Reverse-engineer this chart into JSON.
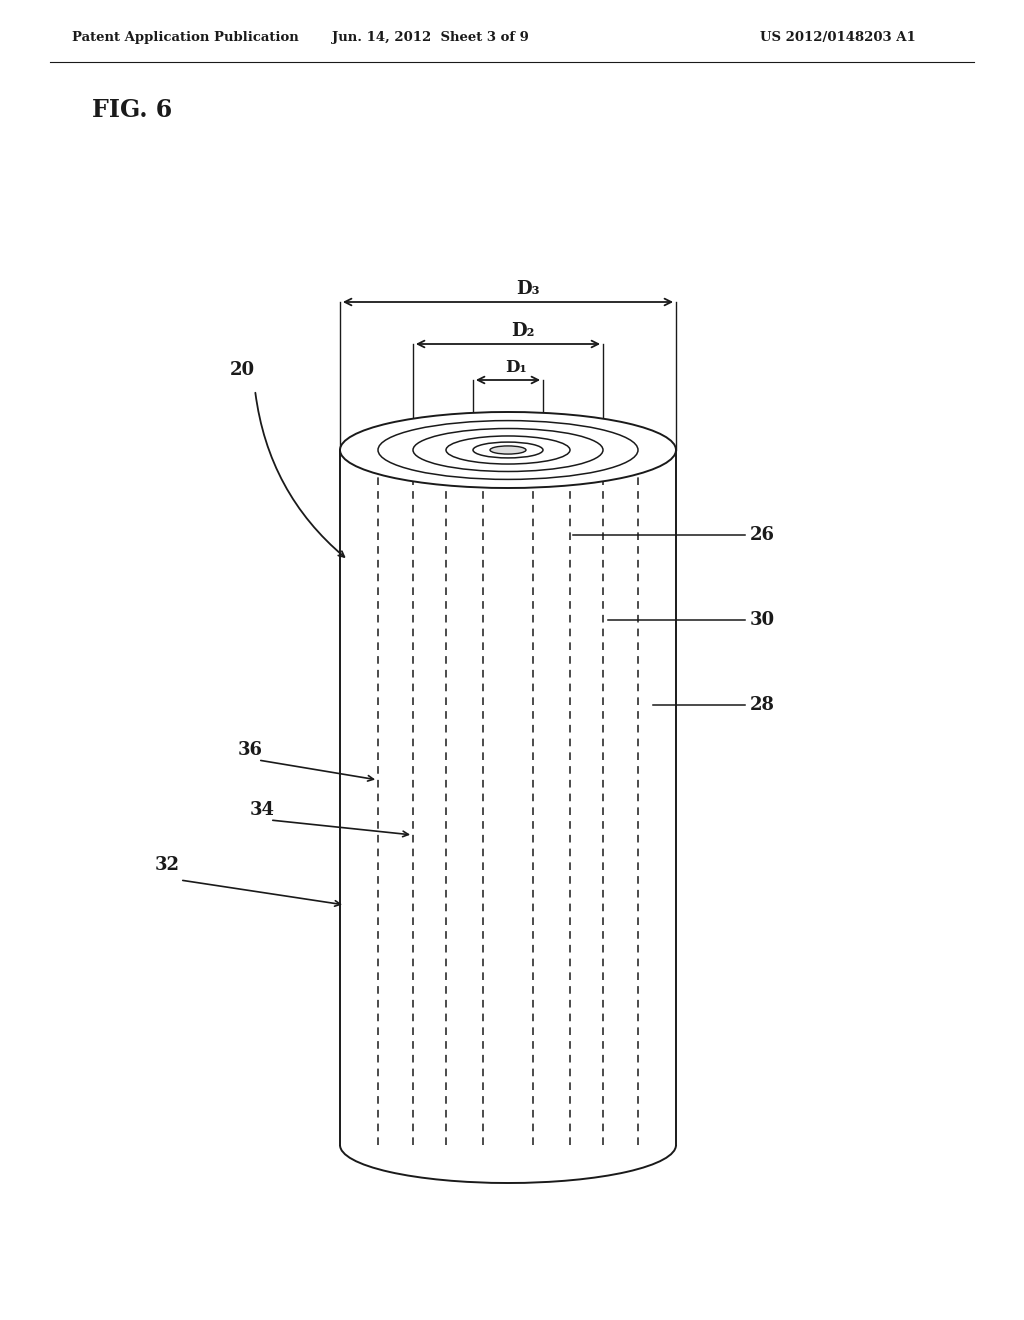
{
  "header_left": "Patent Application Publication",
  "header_mid": "Jun. 14, 2012  Sheet 3 of 9",
  "header_right": "US 2012/0148203 A1",
  "fig_label": "FIG. 6",
  "label_20": "20",
  "label_26": "26",
  "label_28": "28",
  "label_30": "30",
  "label_32": "32",
  "label_34": "34",
  "label_36": "36",
  "dim_D1": "D₁",
  "dim_D2": "D₂",
  "dim_D3": "D₃",
  "bg_color": "#ffffff",
  "line_color": "#1a1a1a"
}
